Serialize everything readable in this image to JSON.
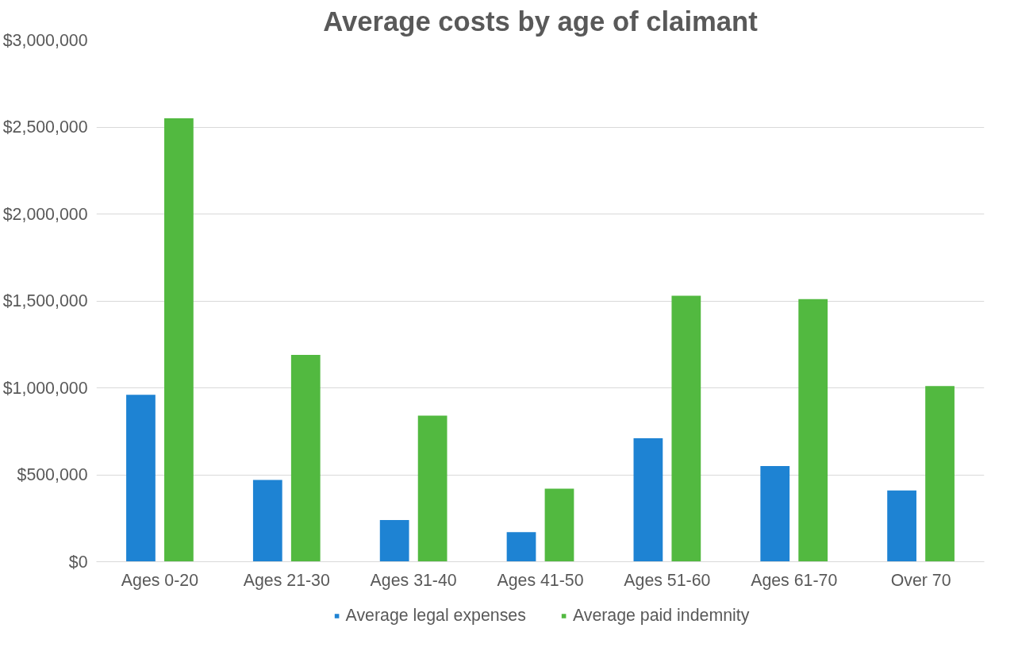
{
  "chart_data": {
    "type": "bar",
    "title": "Average costs by age of claimant",
    "categories": [
      "Ages 0-20",
      "Ages 21-30",
      "Ages 31-40",
      "Ages 41-50",
      "Ages 51-60",
      "Ages 61-70",
      "Over 70"
    ],
    "series": [
      {
        "name": "Average legal expenses",
        "color": "#1e83d3",
        "values": [
          960000,
          470000,
          240000,
          170000,
          710000,
          550000,
          410000
        ]
      },
      {
        "name": "Average paid indemnity",
        "color": "#52b940",
        "values": [
          2550000,
          1190000,
          840000,
          420000,
          1530000,
          1510000,
          1010000
        ]
      }
    ],
    "ylim": [
      0,
      3000000
    ],
    "yticks": [
      {
        "value": 0,
        "label": "$0"
      },
      {
        "value": 500000,
        "label": "$500,000"
      },
      {
        "value": 1000000,
        "label": "$1,000,000"
      },
      {
        "value": 1500000,
        "label": "$1,500,000"
      },
      {
        "value": 2000000,
        "label": "$2,000,000"
      },
      {
        "value": 2500000,
        "label": "$2,500,000"
      },
      {
        "value": 3000000,
        "label": "$3,000,000"
      }
    ],
    "grid": "y",
    "legend": "bottom"
  }
}
